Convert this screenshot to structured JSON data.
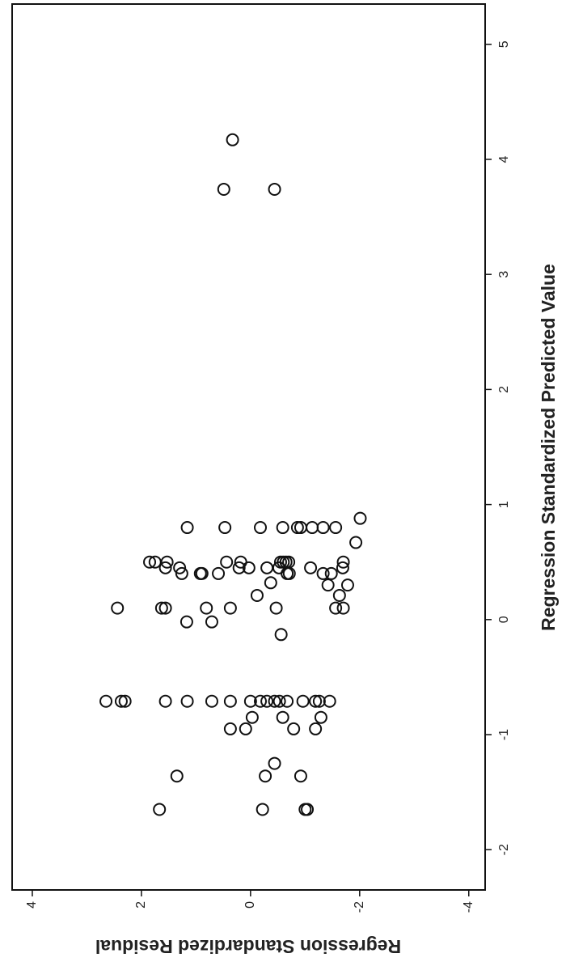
{
  "chart_data": {
    "type": "scatter",
    "x_label": "Regression Standardized Predicted Value",
    "y_label": "Regression Standardized Residual",
    "x": [
      -1.65,
      -1.65,
      -1.65,
      -1.65,
      -1.36,
      -1.36,
      -1.36,
      -1.25,
      -0.95,
      -0.95,
      -0.95,
      -0.95,
      -0.85,
      -0.85,
      -0.85,
      -0.71,
      -0.71,
      -0.71,
      -0.71,
      -0.71,
      -0.71,
      -0.71,
      -0.71,
      -0.71,
      -0.71,
      -0.71,
      -0.71,
      -0.71,
      -0.71,
      -0.71,
      -0.71,
      -0.71,
      -0.13,
      -0.02,
      -0.02,
      0.1,
      0.1,
      0.1,
      0.1,
      0.1,
      0.1,
      0.1,
      0.1,
      0.21,
      0.21,
      0.3,
      0.3,
      0.32,
      0.4,
      0.4,
      0.4,
      0.4,
      0.4,
      0.4,
      0.4,
      0.4,
      0.45,
      0.45,
      0.45,
      0.45,
      0.45,
      0.45,
      0.45,
      0.45,
      0.5,
      0.5,
      0.5,
      0.5,
      0.5,
      0.5,
      0.5,
      0.5,
      0.5,
      0.5,
      0.67,
      0.8,
      0.8,
      0.8,
      0.8,
      0.8,
      0.8,
      0.8,
      0.8,
      0.8,
      0.88,
      4.17,
      3.74,
      3.74
    ],
    "values": [
      1.67,
      -0.22,
      -1.0,
      -1.04,
      1.35,
      -0.27,
      -0.92,
      -0.44,
      0.37,
      0.09,
      -0.79,
      -1.19,
      -0.03,
      -0.59,
      -1.29,
      2.65,
      2.37,
      2.3,
      1.56,
      1.16,
      0.71,
      0.37,
      0.0,
      -0.18,
      -0.3,
      -0.44,
      -0.53,
      -0.67,
      -0.96,
      -1.19,
      -1.26,
      -1.45,
      -0.56,
      1.17,
      0.71,
      2.44,
      1.63,
      1.56,
      0.81,
      0.37,
      -0.47,
      -1.56,
      -1.7,
      -0.12,
      -1.63,
      -1.78,
      -1.42,
      -0.37,
      1.26,
      0.89,
      0.59,
      0.92,
      -0.67,
      -0.71,
      -1.33,
      -1.48,
      1.56,
      1.3,
      0.21,
      0.03,
      -0.3,
      -0.52,
      -1.1,
      -1.69,
      1.85,
      1.75,
      1.53,
      0.44,
      0.18,
      -0.55,
      -0.6,
      -0.65,
      -0.7,
      -1.7,
      -1.93,
      1.16,
      0.47,
      -0.18,
      -0.59,
      -0.86,
      -0.92,
      -1.13,
      -1.33,
      -1.56,
      -2.01,
      0.33,
      0.49,
      -0.44
    ],
    "xlim": [
      -2.35,
      5.35
    ],
    "ylim": [
      -4.3,
      4.37
    ],
    "xticks": [
      -2,
      -1,
      0,
      1,
      2,
      3,
      4,
      5
    ],
    "yticks": [
      -4,
      -2,
      0,
      2,
      4
    ],
    "color": "#111111"
  }
}
